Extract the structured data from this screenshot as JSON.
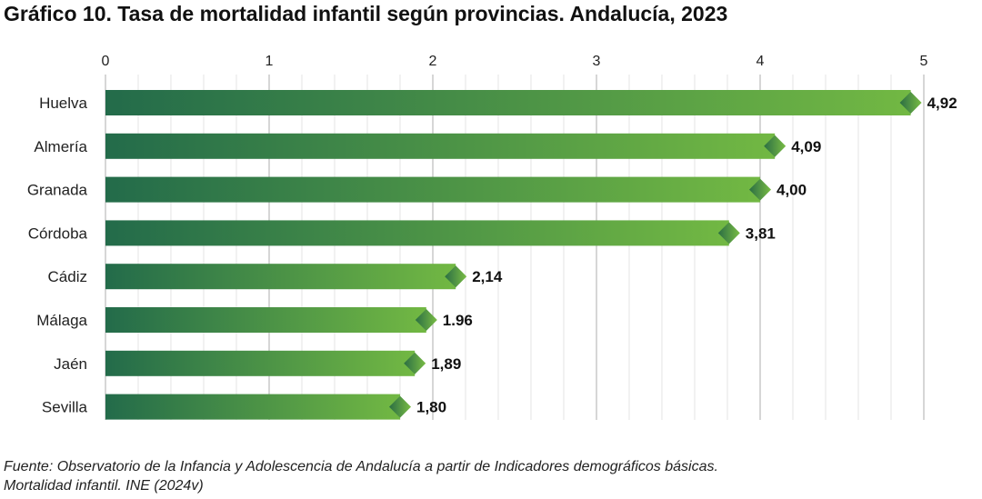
{
  "title": "Gráfico 10. Tasa de mortalidad infantil según provincias. Andalucía, 2023",
  "source": {
    "line1": "Fuente: Observatorio de la Infancia y Adolescencia de Andalucía a partir de Indicadores demográficos básicas.",
    "line2": "Mortalidad infantil. INE (2024v)"
  },
  "colors": {
    "bar_start": "#236b4a",
    "bar_end": "#72b843",
    "marker_dark": "#2b6e43",
    "marker_light": "#79bc45",
    "grid": "#dddddd",
    "axis": "#bbbbbb",
    "text": "#222222"
  },
  "chart_data": {
    "type": "bar",
    "orientation": "horizontal",
    "categories": [
      "Huelva",
      "Almería",
      "Granada",
      "Córdoba",
      "Cádiz",
      "Málaga",
      "Jaén",
      "Sevilla"
    ],
    "values": [
      4.92,
      4.09,
      4.0,
      3.81,
      2.14,
      1.96,
      1.89,
      1.8
    ],
    "value_labels": [
      "4,92",
      "4,09",
      "4,00",
      "3,81",
      "2,14",
      "1.96",
      "1,89",
      "1,80"
    ],
    "xlim": [
      0,
      5
    ],
    "xticks": [
      0,
      1,
      2,
      3,
      4,
      5
    ],
    "xtick_labels": [
      "0",
      "1",
      "2",
      "3",
      "4",
      "5"
    ],
    "xaxis_position": "top",
    "grid": true,
    "legend": false
  }
}
